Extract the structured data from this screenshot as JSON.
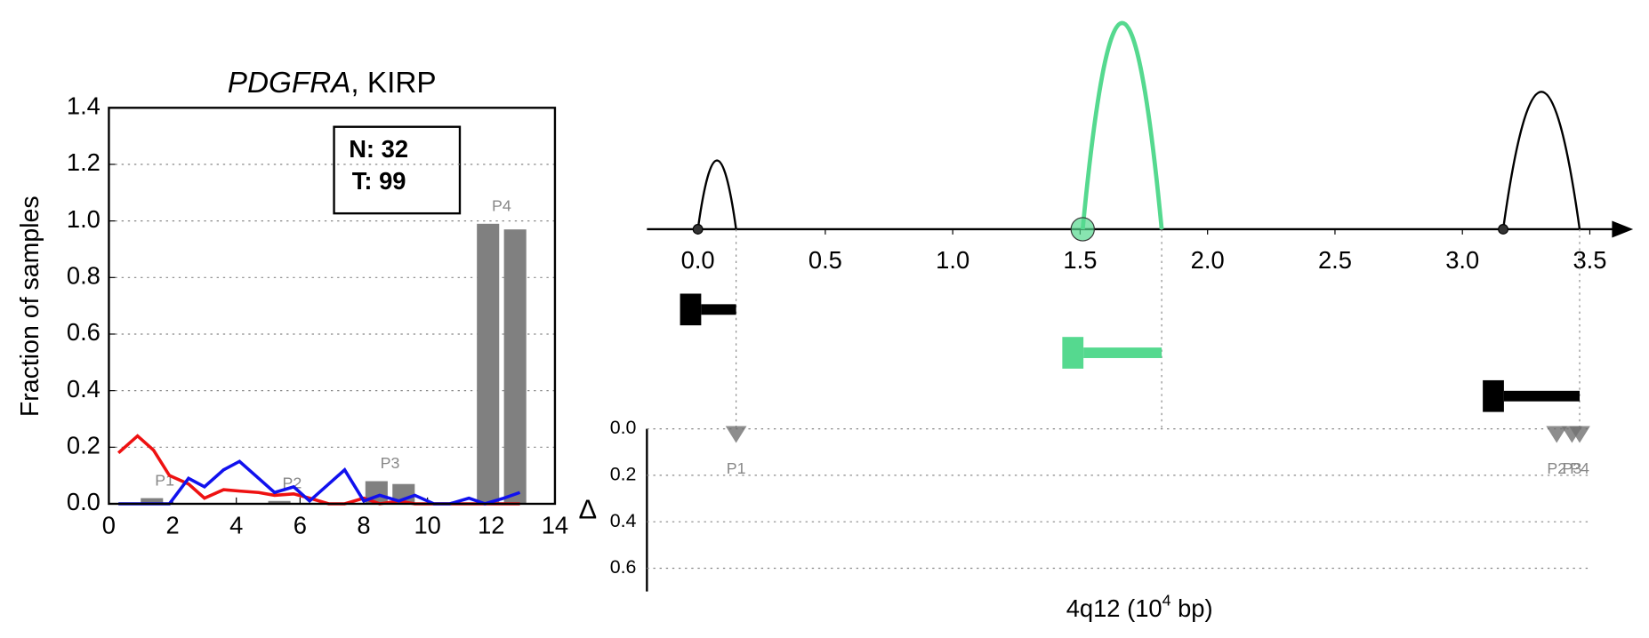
{
  "chart_data": [
    {
      "type": "bar",
      "title_italic": "PDGFRA",
      "title": ", KIRP",
      "ylabel": "Fraction of samples",
      "xlim": [
        0,
        14
      ],
      "xticks": [
        0,
        2,
        4,
        6,
        8,
        10,
        12,
        14
      ],
      "ylim": [
        0,
        1.4
      ],
      "yticks": [
        {
          "value": 0,
          "label": "0.0"
        },
        {
          "value": 0.2,
          "label": "0.2"
        },
        {
          "value": 0.4,
          "label": "0.4"
        },
        {
          "value": 0.6,
          "label": "0.6"
        },
        {
          "value": 0.8,
          "label": "0.8"
        },
        {
          "value": 1.0,
          "label": "1.0"
        },
        {
          "value": 1.2,
          "label": "1.2"
        },
        {
          "value": 1.4,
          "label": "1.4"
        }
      ],
      "grid": true,
      "annotations": [
        "N: 32",
        "T: 99"
      ],
      "x": [
        1.35,
        5.35,
        8.4,
        9.25,
        11.9,
        12.75
      ],
      "values": [
        0.02,
        0.01,
        0.08,
        0.07,
        0.99,
        0.97
      ],
      "color": "#808080",
      "bar_labels": [
        "P1",
        "P2",
        "P3",
        null,
        "P4",
        null
      ],
      "series": [
        {
          "color": "#ee1111",
          "x": [
            0.3,
            0.9,
            1.4,
            1.9,
            2.5,
            3.0,
            3.6,
            4.1,
            4.7,
            5.2,
            5.8,
            6.3,
            6.9,
            7.4,
            8.0,
            8.5,
            9.1,
            9.6,
            10.2,
            10.7,
            11.3,
            11.8,
            12.4,
            12.9
          ],
          "values": [
            0.18,
            0.24,
            0.19,
            0.1,
            0.07,
            0.02,
            0.05,
            0.045,
            0.04,
            0.03,
            0.035,
            0.02,
            0.0,
            0.0,
            0.02,
            0.0,
            0.01,
            0.0,
            0.0,
            0.0,
            0.0,
            0.0,
            0.0,
            0.0
          ]
        },
        {
          "color": "#1111ee",
          "x": [
            0.3,
            0.9,
            1.4,
            1.9,
            2.5,
            3.0,
            3.6,
            4.1,
            4.7,
            5.2,
            5.8,
            6.3,
            6.9,
            7.4,
            8.0,
            8.5,
            9.1,
            9.6,
            10.2,
            10.7,
            11.3,
            11.8,
            12.4,
            12.9
          ],
          "values": [
            0,
            0,
            0,
            0,
            0.09,
            0.06,
            0.12,
            0.15,
            0.09,
            0.04,
            0.06,
            0.01,
            0.07,
            0.12,
            0.01,
            0.03,
            0.01,
            0.03,
            0.0,
            0.0,
            0.02,
            0.0,
            0.02,
            0.04
          ]
        }
      ]
    },
    {
      "type": "loops",
      "xlabel_parts": [
        "4q12 (10",
        "4",
        " bp)"
      ],
      "xlim": [
        -0.2,
        3.67
      ],
      "xticks": [
        {
          "value": 0,
          "label": "0.0"
        },
        {
          "value": 0.5,
          "label": "0.5"
        },
        {
          "value": 1.0,
          "label": "1.0"
        },
        {
          "value": 1.5,
          "label": "1.5"
        },
        {
          "value": 2.0,
          "label": "2.0"
        },
        {
          "value": 2.5,
          "label": "2.5"
        },
        {
          "value": 3.0,
          "label": "3.0"
        },
        {
          "value": 3.5,
          "label": "3.5"
        }
      ],
      "loops": [
        {
          "start": 0.0,
          "end": 0.15,
          "height": 0.27,
          "color": "#000000",
          "highlight": false
        },
        {
          "start": 1.51,
          "end": 1.82,
          "height": 0.81,
          "color": "#55d98f",
          "highlight": true
        },
        {
          "start": 3.16,
          "end": 3.46,
          "height": 0.54,
          "color": "#000000",
          "highlight": false
        }
      ],
      "genes": [
        {
          "start": -0.07,
          "end": 0.15,
          "color": "#000000"
        },
        {
          "start": 1.43,
          "end": 1.82,
          "color": "#55d98f"
        },
        {
          "start": 3.08,
          "end": 3.46,
          "color": "#000000"
        }
      ]
    },
    {
      "type": "scatter",
      "ylabel": "Δ",
      "ylim": [
        0,
        0.7
      ],
      "yticks": [
        {
          "value": 0,
          "label": "0.0"
        },
        {
          "value": 0.2,
          "label": "0.2"
        },
        {
          "value": 0.4,
          "label": "0.4"
        },
        {
          "value": 0.6,
          "label": "0.6"
        }
      ],
      "grid": true,
      "x": [
        0.15,
        3.37,
        3.43,
        3.46
      ],
      "values": [
        0.02,
        0.02,
        0.02,
        0.02
      ],
      "labels": [
        "P1",
        "P2",
        "P3",
        "P4"
      ],
      "color": "#707070"
    }
  ]
}
